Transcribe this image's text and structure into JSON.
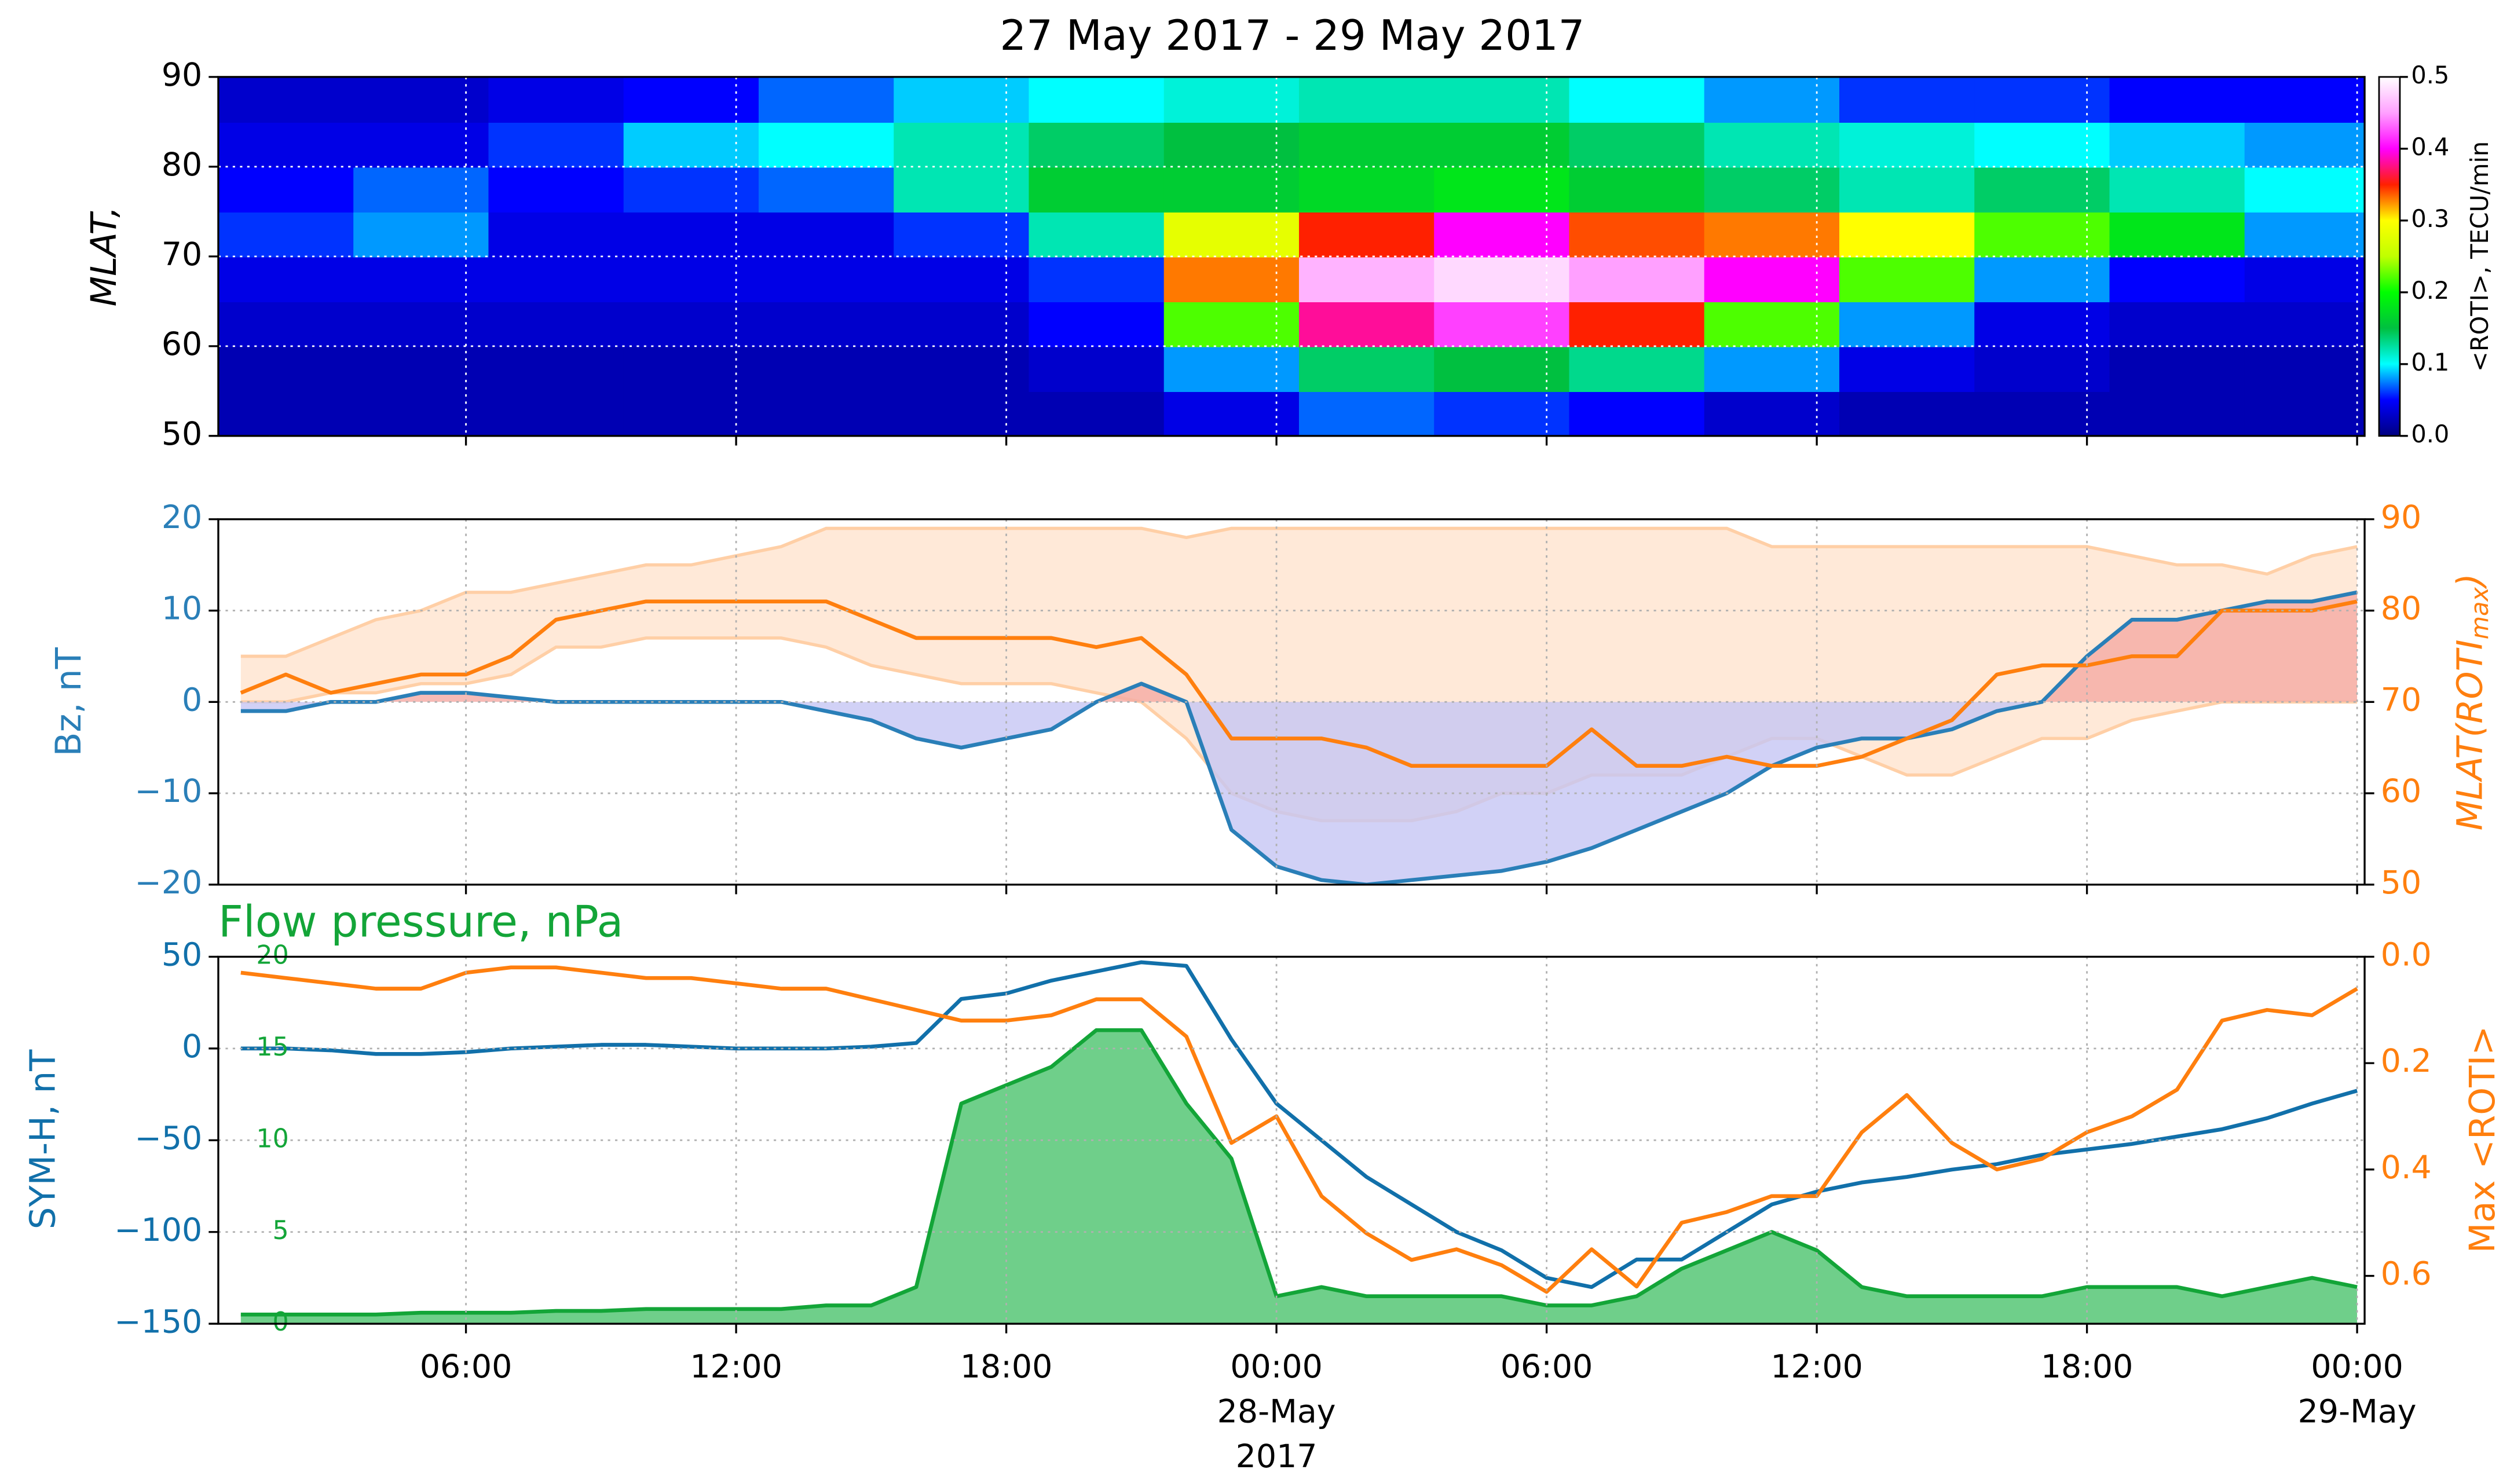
{
  "chart_data": [
    {
      "type": "heatmap",
      "title": "27 May 2017 - 29 May 2017",
      "ylabel": "MLAT,",
      "xlim": [
        "2017-05-27T00:30",
        "2017-05-29T00:10"
      ],
      "xticks": [
        "2017-05-27T06:00",
        "2017-05-27T12:00",
        "2017-05-27T18:00",
        "2017-05-28T00:00",
        "2017-05-28T06:00",
        "2017-05-28T12:00",
        "2017-05-28T18:00",
        "2017-05-29T00:00"
      ],
      "ylim": [
        50,
        90
      ],
      "yticks": [
        50,
        60,
        70,
        80,
        90
      ],
      "grid": true,
      "x_edges": [
        "2017-05-27T00:30",
        "2017-05-27T03:30",
        "2017-05-27T06:30",
        "2017-05-27T09:30",
        "2017-05-27T12:30",
        "2017-05-27T15:30",
        "2017-05-27T18:30",
        "2017-05-27T21:30",
        "2017-05-28T00:30",
        "2017-05-28T03:30",
        "2017-05-28T06:30",
        "2017-05-28T09:30",
        "2017-05-28T12:30",
        "2017-05-28T15:30",
        "2017-05-28T18:30",
        "2017-05-28T21:30",
        "2017-05-29T00:30"
      ],
      "y_edges": [
        50,
        55,
        60,
        65,
        70,
        75,
        80,
        85,
        90
      ],
      "values": [
        [
          0.02,
          0.02,
          0.02,
          0.02,
          0.02,
          0.02,
          0.02,
          0.04,
          0.07,
          0.06,
          0.05,
          0.03,
          0.02,
          0.02,
          0.02,
          0.02
        ],
        [
          0.02,
          0.02,
          0.02,
          0.02,
          0.02,
          0.02,
          0.03,
          0.08,
          0.14,
          0.15,
          0.13,
          0.08,
          0.04,
          0.03,
          0.02,
          0.02
        ],
        [
          0.03,
          0.03,
          0.03,
          0.03,
          0.03,
          0.03,
          0.05,
          0.22,
          0.38,
          0.42,
          0.35,
          0.22,
          0.08,
          0.04,
          0.03,
          0.03
        ],
        [
          0.04,
          0.04,
          0.04,
          0.04,
          0.04,
          0.04,
          0.06,
          0.33,
          0.46,
          0.48,
          0.45,
          0.4,
          0.22,
          0.08,
          0.05,
          0.04
        ],
        [
          0.06,
          0.08,
          0.04,
          0.04,
          0.04,
          0.06,
          0.12,
          0.28,
          0.35,
          0.4,
          0.34,
          0.33,
          0.3,
          0.22,
          0.18,
          0.08
        ],
        [
          0.05,
          0.07,
          0.05,
          0.06,
          0.07,
          0.12,
          0.16,
          0.16,
          0.17,
          0.18,
          0.16,
          0.14,
          0.12,
          0.14,
          0.12,
          0.1
        ],
        [
          0.04,
          0.04,
          0.06,
          0.09,
          0.1,
          0.12,
          0.14,
          0.15,
          0.16,
          0.16,
          0.14,
          0.12,
          0.11,
          0.1,
          0.09,
          0.08
        ],
        [
          0.03,
          0.03,
          0.04,
          0.05,
          0.07,
          0.09,
          0.1,
          0.11,
          0.12,
          0.12,
          0.1,
          0.08,
          0.06,
          0.06,
          0.05,
          0.05
        ]
      ],
      "colorbar": {
        "label": "<ROTI>, TECU/min",
        "clim": [
          0,
          0.5
        ],
        "ticks": [
          {
            "value": 0,
            "label": "0.0"
          },
          {
            "value": 0.1,
            "label": "0.1"
          },
          {
            "value": 0.2,
            "label": "0.2"
          },
          {
            "value": 0.3,
            "label": "0.3"
          },
          {
            "value": 0.4,
            "label": "0.4"
          },
          {
            "value": 0.5,
            "label": "0.5"
          }
        ],
        "colors": [
          "#000080",
          "#0000ff",
          "#00ffff",
          "#00c040",
          "#00ff00",
          "#c0ff00",
          "#ffff00",
          "#ff2000",
          "#ff00ff",
          "#ffa0ff",
          "#ffffff"
        ]
      }
    },
    {
      "type": "line",
      "ylabel": "Bz, nT",
      "y2label": [
        "MLAT(ROTI",
        "max",
        ")"
      ],
      "xlim": [
        "2017-05-27T00:30",
        "2017-05-29T00:10"
      ],
      "xticks": [
        "2017-05-27T06:00",
        "2017-05-27T12:00",
        "2017-05-27T18:00",
        "2017-05-28T00:00",
        "2017-05-28T06:00",
        "2017-05-28T12:00",
        "2017-05-28T18:00",
        "2017-05-29T00:00"
      ],
      "ylim": [
        -20,
        20
      ],
      "yticks": [
        {
          "value": -20,
          "label": "−20"
        },
        {
          "value": -10,
          "label": "−10"
        },
        0,
        10,
        20
      ],
      "y2lim": [
        50,
        90
      ],
      "y2ticks": [
        50,
        60,
        70,
        80,
        90
      ],
      "grid": true,
      "x": [
        "2017-05-27T01:00",
        "2017-05-27T02:00",
        "2017-05-27T03:00",
        "2017-05-27T04:00",
        "2017-05-27T05:00",
        "2017-05-27T06:00",
        "2017-05-27T07:00",
        "2017-05-27T08:00",
        "2017-05-27T09:00",
        "2017-05-27T10:00",
        "2017-05-27T11:00",
        "2017-05-27T12:00",
        "2017-05-27T13:00",
        "2017-05-27T14:00",
        "2017-05-27T15:00",
        "2017-05-27T16:00",
        "2017-05-27T17:00",
        "2017-05-27T18:00",
        "2017-05-27T19:00",
        "2017-05-27T20:00",
        "2017-05-27T21:00",
        "2017-05-27T22:00",
        "2017-05-27T23:00",
        "2017-05-28T00:00",
        "2017-05-28T01:00",
        "2017-05-28T02:00",
        "2017-05-28T03:00",
        "2017-05-28T04:00",
        "2017-05-28T05:00",
        "2017-05-28T06:00",
        "2017-05-28T07:00",
        "2017-05-28T08:00",
        "2017-05-28T09:00",
        "2017-05-28T10:00",
        "2017-05-28T11:00",
        "2017-05-28T12:00",
        "2017-05-28T13:00",
        "2017-05-28T14:00",
        "2017-05-28T15:00",
        "2017-05-28T16:00",
        "2017-05-28T17:00",
        "2017-05-28T18:00",
        "2017-05-28T19:00",
        "2017-05-28T20:00",
        "2017-05-28T21:00",
        "2017-05-28T22:00",
        "2017-05-28T23:00",
        "2017-05-29T00:00"
      ],
      "series": [
        {
          "axis": "y2",
          "color": "#ffe9d8",
          "edge_color": "#ffcfa6",
          "upper": [
            75,
            75,
            77,
            79,
            80,
            82,
            82,
            83,
            84,
            85,
            85,
            86,
            87,
            89,
            89,
            89,
            89,
            89,
            89,
            89,
            89,
            88,
            89,
            89,
            89,
            89,
            89,
            89,
            89,
            89,
            89,
            89,
            89,
            89,
            87,
            87,
            87,
            87,
            87,
            87,
            87,
            87,
            86,
            85,
            85,
            84,
            86,
            87
          ],
          "lower": [
            70,
            70,
            71,
            71,
            72,
            72,
            73,
            76,
            76,
            77,
            77,
            77,
            77,
            76,
            74,
            73,
            72,
            72,
            72,
            71,
            70,
            66,
            60,
            58,
            57,
            57,
            57,
            58,
            60,
            60,
            62,
            62,
            62,
            64,
            66,
            66,
            64,
            62,
            62,
            64,
            66,
            66,
            68,
            69,
            70,
            70,
            70,
            70
          ]
        },
        {
          "color": "#2a7fb8",
          "fill_positive": "#f5aaa4",
          "fill_negative": "#c6c6f4",
          "values": [
            -1,
            -1,
            0,
            0,
            1,
            1,
            0.5,
            0,
            0,
            0,
            0,
            0,
            0,
            -1,
            -2,
            -4,
            -5,
            -4,
            -3,
            0,
            2,
            0,
            -14,
            -18,
            -19.5,
            -20,
            -19.5,
            -19,
            -18.5,
            -17.5,
            -16,
            -14,
            -12,
            -10,
            -7,
            -5,
            -4,
            -4,
            -3,
            -1,
            0,
            5,
            9,
            9,
            10,
            11,
            11,
            12
          ]
        },
        {
          "axis": "y2",
          "color": "#ff7f0e",
          "values": [
            71,
            73,
            71,
            72,
            73,
            73,
            75,
            79,
            80,
            81,
            81,
            81,
            81,
            81,
            79,
            77,
            77,
            77,
            77,
            76,
            77,
            73,
            66,
            66,
            66,
            65,
            63,
            63,
            63,
            63,
            67,
            63,
            63,
            64,
            63,
            63,
            64,
            66,
            68,
            73,
            74,
            74,
            75,
            75,
            80,
            80,
            80,
            81
          ]
        }
      ]
    },
    {
      "type": "line",
      "ylabel": "SYM-H, nT",
      "y2label": "Max <ROTI>",
      "y3label": "Flow pressure, nPa",
      "xlim": [
        "2017-05-27T00:30",
        "2017-05-29T00:10"
      ],
      "xticks": [
        {
          "value": "2017-05-27T06:00",
          "label": "06:00"
        },
        {
          "value": "2017-05-27T12:00",
          "label": "12:00"
        },
        {
          "value": "2017-05-27T18:00",
          "label": "18:00"
        },
        {
          "value": "2017-05-28T00:00",
          "label": [
            "00:00",
            "28-May",
            "2017"
          ]
        },
        {
          "value": "2017-05-28T06:00",
          "label": "06:00"
        },
        {
          "value": "2017-05-28T12:00",
          "label": "12:00"
        },
        {
          "value": "2017-05-28T18:00",
          "label": "18:00"
        },
        {
          "value": "2017-05-29T00:00",
          "label": [
            "00:00",
            "29-May"
          ]
        }
      ],
      "ylim": [
        -150,
        50
      ],
      "yticks": [
        {
          "value": -150,
          "label": "−150"
        },
        {
          "value": -100,
          "label": "−100"
        },
        {
          "value": -50,
          "label": "−50"
        },
        0,
        50
      ],
      "y2lim": [
        0.69,
        0
      ],
      "y2ticks": [
        {
          "value": 0,
          "label": "0.0"
        },
        {
          "value": 0.2,
          "label": "0.2"
        },
        {
          "value": 0.4,
          "label": "0.4"
        },
        {
          "value": 0.6,
          "label": "0.6"
        }
      ],
      "y3lim": [
        0,
        20
      ],
      "y3ticks": [
        0,
        5,
        10,
        15,
        20
      ],
      "grid": true,
      "x": [
        "2017-05-27T01:00",
        "2017-05-27T02:00",
        "2017-05-27T03:00",
        "2017-05-27T04:00",
        "2017-05-27T05:00",
        "2017-05-27T06:00",
        "2017-05-27T07:00",
        "2017-05-27T08:00",
        "2017-05-27T09:00",
        "2017-05-27T10:00",
        "2017-05-27T11:00",
        "2017-05-27T12:00",
        "2017-05-27T13:00",
        "2017-05-27T14:00",
        "2017-05-27T15:00",
        "2017-05-27T16:00",
        "2017-05-27T17:00",
        "2017-05-27T18:00",
        "2017-05-27T19:00",
        "2017-05-27T20:00",
        "2017-05-27T21:00",
        "2017-05-27T22:00",
        "2017-05-27T23:00",
        "2017-05-28T00:00",
        "2017-05-28T01:00",
        "2017-05-28T02:00",
        "2017-05-28T03:00",
        "2017-05-28T04:00",
        "2017-05-28T05:00",
        "2017-05-28T06:00",
        "2017-05-28T07:00",
        "2017-05-28T08:00",
        "2017-05-28T09:00",
        "2017-05-28T10:00",
        "2017-05-28T11:00",
        "2017-05-28T12:00",
        "2017-05-28T13:00",
        "2017-05-28T14:00",
        "2017-05-28T15:00",
        "2017-05-28T16:00",
        "2017-05-28T17:00",
        "2017-05-28T18:00",
        "2017-05-28T19:00",
        "2017-05-28T20:00",
        "2017-05-28T21:00",
        "2017-05-28T22:00",
        "2017-05-28T23:00",
        "2017-05-29T00:00"
      ],
      "series": [
        {
          "axis": "y3",
          "color": "#13a538",
          "fill": "#6fcf8a",
          "values": [
            0.5,
            0.5,
            0.5,
            0.5,
            0.6,
            0.6,
            0.6,
            0.7,
            0.7,
            0.8,
            0.8,
            0.8,
            0.8,
            1,
            1,
            2,
            12,
            13,
            14,
            16,
            16,
            12,
            9,
            1.5,
            2,
            1.5,
            1.5,
            1.5,
            1.5,
            1,
            1,
            1.5,
            3,
            4,
            5,
            4,
            2,
            1.5,
            1.5,
            1.5,
            1.5,
            2,
            2,
            2,
            1.5,
            2,
            2.5,
            2
          ]
        },
        {
          "color": "#1170aa",
          "values": [
            0,
            0,
            -1,
            -3,
            -3,
            -2,
            0,
            1,
            2,
            2,
            1,
            0,
            0,
            0,
            1,
            3,
            27,
            30,
            37,
            42,
            47,
            45,
            5,
            -30,
            -50,
            -70,
            -85,
            -100,
            -110,
            -125,
            -130,
            -115,
            -115,
            -100,
            -85,
            -78,
            -73,
            -70,
            -66,
            -63,
            -58,
            -55,
            -52,
            -48,
            -44,
            -38,
            -30,
            -23
          ]
        },
        {
          "axis": "y2",
          "color": "#ff7f0e",
          "values": [
            0.03,
            0.04,
            0.05,
            0.06,
            0.06,
            0.03,
            0.02,
            0.02,
            0.03,
            0.04,
            0.04,
            0.05,
            0.06,
            0.06,
            0.08,
            0.1,
            0.12,
            0.12,
            0.11,
            0.08,
            0.08,
            0.15,
            0.35,
            0.3,
            0.45,
            0.52,
            0.57,
            0.55,
            0.58,
            0.63,
            0.55,
            0.62,
            0.5,
            0.48,
            0.45,
            0.45,
            0.33,
            0.26,
            0.35,
            0.4,
            0.38,
            0.33,
            0.3,
            0.25,
            0.12,
            0.1,
            0.11,
            0.06
          ]
        }
      ]
    }
  ]
}
